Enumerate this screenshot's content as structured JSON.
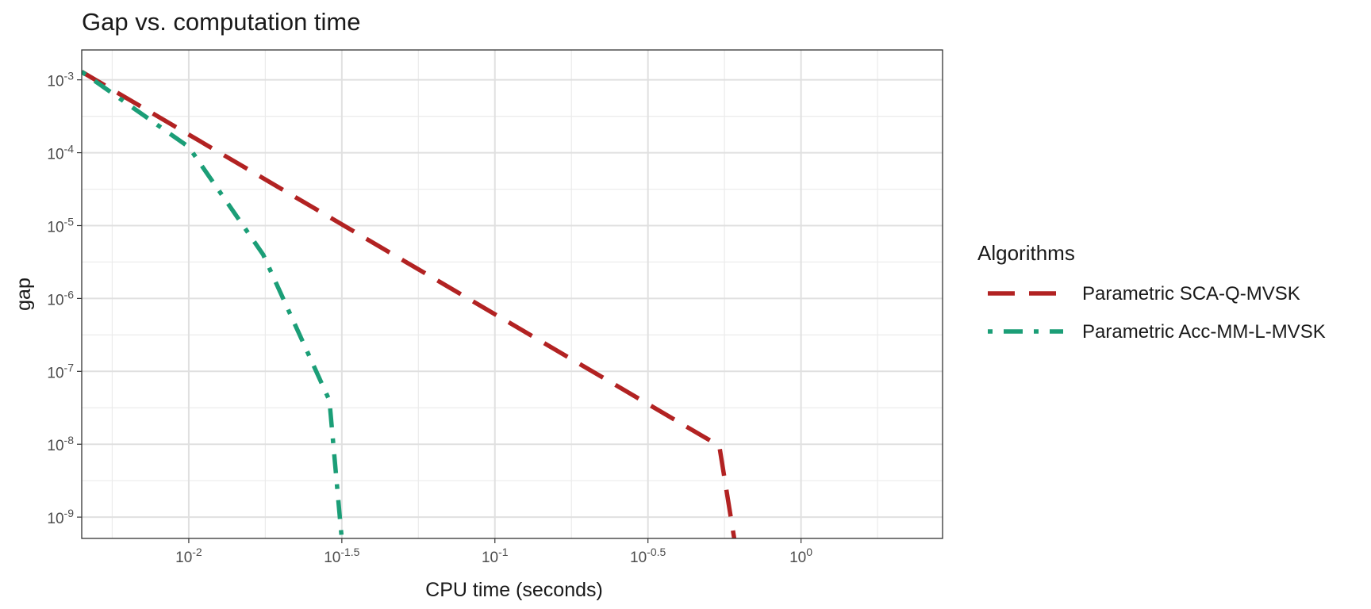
{
  "chart_data": {
    "type": "line",
    "title": "Gap vs. computation time",
    "x_label": "CPU time (seconds)",
    "y_label": "gap",
    "legend_title": "Algorithms",
    "legend_position": "right",
    "x_log": true,
    "y_log": true,
    "grid": true,
    "xlim": [
      0.00447,
      2.9
    ],
    "ylim": [
      5.1e-10,
      0.00257
    ],
    "xticks": [
      {
        "value": 0.01,
        "label": "10^-2"
      },
      {
        "value": 0.0316228,
        "label": "10^-1.5"
      },
      {
        "value": 0.1,
        "label": "10^-1"
      },
      {
        "value": 0.316228,
        "label": "10^-0.5"
      },
      {
        "value": 1,
        "label": "10^0"
      }
    ],
    "yticks": [
      {
        "value": 1e-09,
        "label": "10^-9"
      },
      {
        "value": 1e-08,
        "label": "10^-8"
      },
      {
        "value": 1e-07,
        "label": "10^-7"
      },
      {
        "value": 1e-06,
        "label": "10^-6"
      },
      {
        "value": 1e-05,
        "label": "10^-5"
      },
      {
        "value": 0.0001,
        "label": "10^-4"
      },
      {
        "value": 0.001,
        "label": "10^-3"
      }
    ],
    "series": [
      {
        "name": "Parametric SCA-Q-MVSK",
        "color": "#b22222",
        "dash": "dashed",
        "x": [
          0.00447,
          0.541,
          0.605
        ],
        "values": [
          0.00129,
          9.5e-09,
          5.1e-10
        ]
      },
      {
        "name": "Parametric Acc-MM-L-MVSK",
        "color": "#1b9e77",
        "dash": "dotdash",
        "x": [
          0.00447,
          0.01,
          0.0175,
          0.0288,
          0.0316
        ],
        "values": [
          0.00129,
          0.00012,
          4e-06,
          4e-08,
          5.1e-10
        ]
      }
    ]
  }
}
